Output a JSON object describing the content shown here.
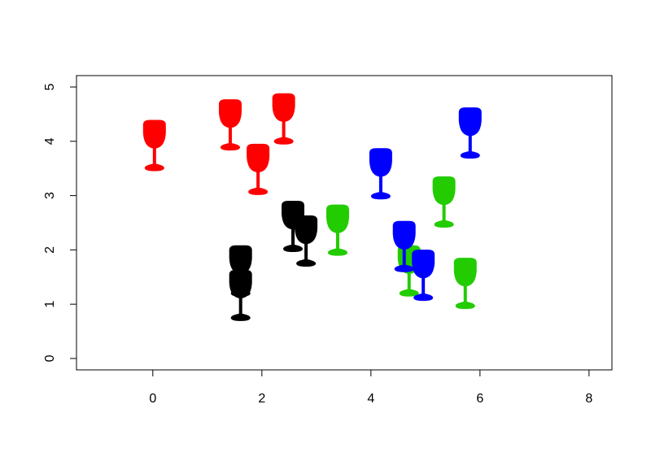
{
  "chart_data": {
    "type": "scatter",
    "marker": "wine-glass",
    "series": [
      {
        "color": "#ff0000",
        "x": [
          0.03,
          1.42,
          1.93,
          2.4
        ],
        "y": [
          3.9,
          4.28,
          3.46,
          4.39
        ]
      },
      {
        "color": "#000000",
        "x": [
          1.61,
          1.61,
          2.57,
          2.81
        ],
        "y": [
          1.59,
          1.14,
          2.41,
          2.14
        ]
      },
      {
        "color": "#22cc00",
        "x": [
          3.39,
          4.7,
          5.34,
          5.73
        ],
        "y": [
          2.34,
          1.59,
          2.86,
          1.36
        ]
      },
      {
        "color": "#0000ff",
        "x": [
          4.18,
          5.82,
          4.61,
          4.96
        ],
        "y": [
          3.38,
          4.13,
          2.04,
          1.51
        ]
      }
    ],
    "xlim": [
      -1.4,
      8.42
    ],
    "ylim": [
      -0.21,
      5.21
    ],
    "xticks": [
      0,
      2,
      4,
      6,
      8
    ],
    "yticks": [
      0,
      1,
      2,
      3,
      4,
      5
    ]
  }
}
